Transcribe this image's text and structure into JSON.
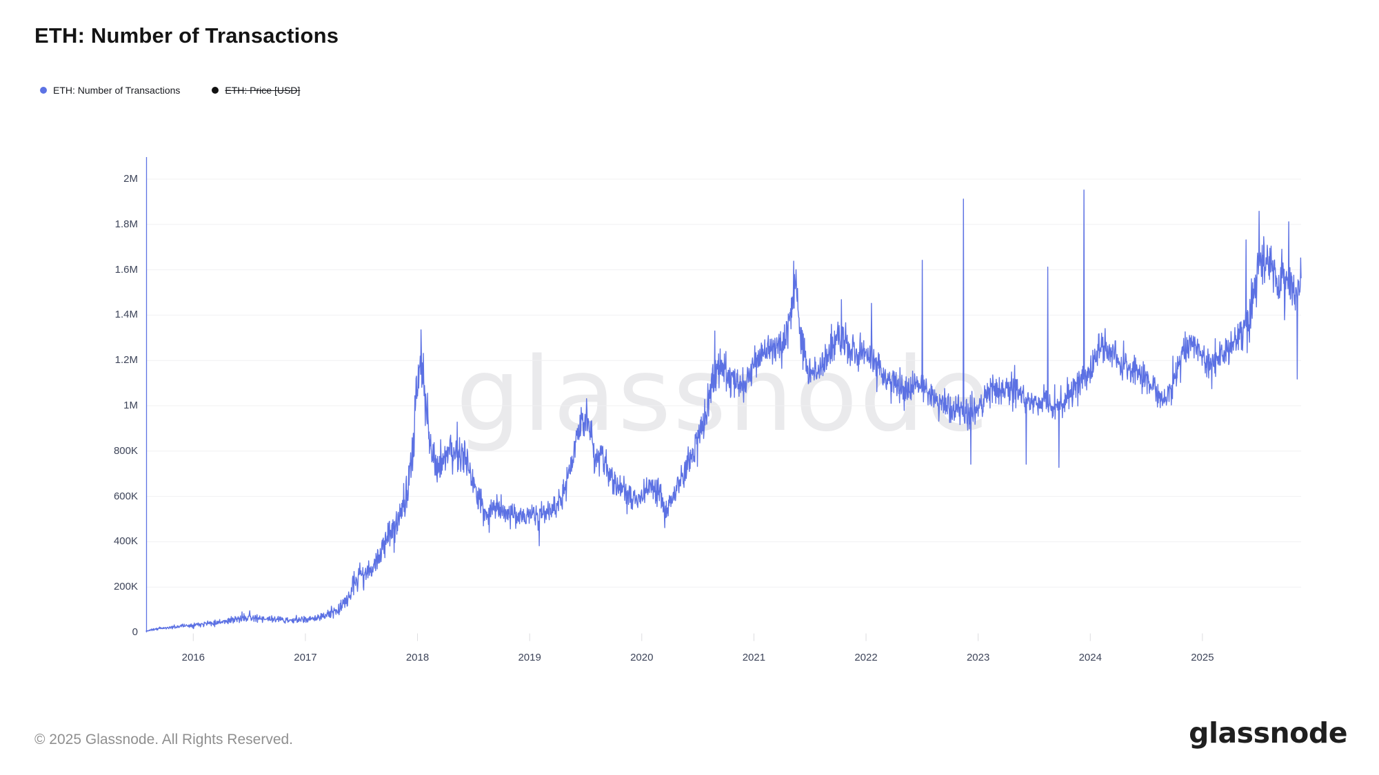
{
  "header": {
    "title": "ETH: Number of Transactions"
  },
  "legend": {
    "items": [
      {
        "label": "ETH: Number of Transactions",
        "color": "#5c72e4",
        "disabled": false
      },
      {
        "label": "ETH: Price [USD]",
        "color": "#111111",
        "disabled": true
      }
    ]
  },
  "chart": {
    "watermark": "glassnode",
    "colors": {
      "line": "#5c71e3",
      "axis": "#5c71e3",
      "grid": "#f0f0f2",
      "tick": "#dcdcdf",
      "tick_text": "#3c4358"
    }
  },
  "chart_data": {
    "type": "line",
    "title": "ETH: Number of Transactions",
    "series_name": "ETH: Number of Transactions",
    "hidden_series": "ETH: Price [USD]",
    "units": "transactions per day (values in thousands)",
    "x_domain": [
      2015.58,
      2025.88
    ],
    "ylim_thousands": [
      0,
      2000
    ],
    "grid": "horizontal-only",
    "legend_position": "top-left",
    "y_ticks": [
      {
        "v": 0,
        "label": "0"
      },
      {
        "v": 200,
        "label": "200K"
      },
      {
        "v": 400,
        "label": "400K"
      },
      {
        "v": 600,
        "label": "600K"
      },
      {
        "v": 800,
        "label": "800K"
      },
      {
        "v": 1000,
        "label": "1M"
      },
      {
        "v": 1200,
        "label": "1.2M"
      },
      {
        "v": 1400,
        "label": "1.4M"
      },
      {
        "v": 1600,
        "label": "1.6M"
      },
      {
        "v": 1800,
        "label": "1.8M"
      },
      {
        "v": 2000,
        "label": "2M"
      }
    ],
    "x_ticks": [
      2016,
      2017,
      2018,
      2019,
      2020,
      2021,
      2022,
      2023,
      2024,
      2025
    ],
    "anchors_monthly": [
      [
        2015.58,
        6,
        2
      ],
      [
        2015.63,
        12,
        4
      ],
      [
        2015.71,
        18,
        5
      ],
      [
        2015.79,
        22,
        6
      ],
      [
        2015.88,
        26,
        7
      ],
      [
        2015.96,
        30,
        7
      ],
      [
        2016.04,
        36,
        8
      ],
      [
        2016.13,
        41,
        9
      ],
      [
        2016.21,
        45,
        10
      ],
      [
        2016.29,
        50,
        12
      ],
      [
        2016.38,
        56,
        13
      ],
      [
        2016.46,
        64,
        15
      ],
      [
        2016.5,
        70,
        16
      ],
      [
        2016.54,
        62,
        13
      ],
      [
        2016.63,
        56,
        12
      ],
      [
        2016.71,
        60,
        13
      ],
      [
        2016.79,
        56,
        11
      ],
      [
        2016.88,
        52,
        10
      ],
      [
        2016.96,
        56,
        11
      ],
      [
        2017.04,
        60,
        12
      ],
      [
        2017.13,
        66,
        14
      ],
      [
        2017.21,
        78,
        18
      ],
      [
        2017.29,
        98,
        24
      ],
      [
        2017.38,
        150,
        34
      ],
      [
        2017.46,
        235,
        48
      ],
      [
        2017.5,
        262,
        44
      ],
      [
        2017.54,
        248,
        40
      ],
      [
        2017.63,
        320,
        48
      ],
      [
        2017.71,
        395,
        52
      ],
      [
        2017.79,
        465,
        58
      ],
      [
        2017.88,
        560,
        70
      ],
      [
        2017.96,
        760,
        95
      ],
      [
        2018.0,
        1150,
        110
      ],
      [
        2018.04,
        1180,
        130
      ],
      [
        2018.08,
        960,
        110
      ],
      [
        2018.13,
        790,
        70
      ],
      [
        2018.17,
        730,
        60
      ],
      [
        2018.25,
        765,
        65
      ],
      [
        2018.33,
        805,
        65
      ],
      [
        2018.42,
        775,
        75
      ],
      [
        2018.5,
        645,
        55
      ],
      [
        2018.58,
        555,
        50
      ],
      [
        2018.63,
        495,
        42
      ],
      [
        2018.67,
        560,
        48
      ],
      [
        2018.75,
        545,
        44
      ],
      [
        2018.83,
        530,
        40
      ],
      [
        2018.92,
        512,
        38
      ],
      [
        2019.0,
        522,
        38
      ],
      [
        2019.08,
        505,
        45
      ],
      [
        2019.17,
        540,
        40
      ],
      [
        2019.25,
        562,
        40
      ],
      [
        2019.33,
        645,
        58
      ],
      [
        2019.42,
        880,
        75
      ],
      [
        2019.5,
        935,
        60
      ],
      [
        2019.54,
        890,
        75
      ],
      [
        2019.58,
        760,
        60
      ],
      [
        2019.67,
        775,
        65
      ],
      [
        2019.75,
        655,
        50
      ],
      [
        2019.83,
        622,
        48
      ],
      [
        2019.92,
        582,
        40
      ],
      [
        2020.0,
        592,
        40
      ],
      [
        2020.08,
        642,
        48
      ],
      [
        2020.17,
        598,
        55
      ],
      [
        2020.21,
        540,
        55
      ],
      [
        2020.29,
        625,
        48
      ],
      [
        2020.38,
        702,
        50
      ],
      [
        2020.46,
        788,
        56
      ],
      [
        2020.54,
        920,
        65
      ],
      [
        2020.63,
        1105,
        70
      ],
      [
        2020.71,
        1165,
        75
      ],
      [
        2020.79,
        1115,
        65
      ],
      [
        2020.88,
        1095,
        58
      ],
      [
        2020.96,
        1128,
        58
      ],
      [
        2021.04,
        1195,
        60
      ],
      [
        2021.13,
        1255,
        60
      ],
      [
        2021.21,
        1238,
        58
      ],
      [
        2021.29,
        1305,
        66
      ],
      [
        2021.35,
        1490,
        85
      ],
      [
        2021.38,
        1545,
        55
      ],
      [
        2021.42,
        1285,
        75
      ],
      [
        2021.5,
        1128,
        58
      ],
      [
        2021.58,
        1178,
        56
      ],
      [
        2021.67,
        1228,
        58
      ],
      [
        2021.75,
        1298,
        75
      ],
      [
        2021.83,
        1252,
        65
      ],
      [
        2021.92,
        1232,
        58
      ],
      [
        2022.0,
        1252,
        65
      ],
      [
        2022.08,
        1188,
        56
      ],
      [
        2022.17,
        1122,
        50
      ],
      [
        2022.25,
        1098,
        50
      ],
      [
        2022.33,
        1062,
        56
      ],
      [
        2022.42,
        1098,
        56
      ],
      [
        2022.5,
        1078,
        56
      ],
      [
        2022.58,
        1042,
        50
      ],
      [
        2022.67,
        1012,
        50
      ],
      [
        2022.75,
        992,
        56
      ],
      [
        2022.83,
        1002,
        56
      ],
      [
        2022.92,
        962,
        56
      ],
      [
        2023.0,
        1002,
        56
      ],
      [
        2023.08,
        1048,
        56
      ],
      [
        2023.17,
        1062,
        56
      ],
      [
        2023.25,
        1078,
        56
      ],
      [
        2023.33,
        1088,
        56
      ],
      [
        2023.42,
        1022,
        62
      ],
      [
        2023.5,
        1012,
        56
      ],
      [
        2023.58,
        1042,
        56
      ],
      [
        2023.67,
        992,
        56
      ],
      [
        2023.75,
        1002,
        52
      ],
      [
        2023.83,
        1058,
        56
      ],
      [
        2023.92,
        1098,
        56
      ],
      [
        2024.0,
        1158,
        62
      ],
      [
        2024.08,
        1255,
        62
      ],
      [
        2024.17,
        1258,
        62
      ],
      [
        2024.25,
        1198,
        62
      ],
      [
        2024.33,
        1178,
        56
      ],
      [
        2024.42,
        1148,
        56
      ],
      [
        2024.5,
        1118,
        56
      ],
      [
        2024.58,
        1058,
        56
      ],
      [
        2024.67,
        1022,
        56
      ],
      [
        2024.75,
        1118,
        62
      ],
      [
        2024.83,
        1248,
        62
      ],
      [
        2024.92,
        1278,
        56
      ],
      [
        2025.0,
        1202,
        62
      ],
      [
        2025.08,
        1182,
        62
      ],
      [
        2025.17,
        1222,
        56
      ],
      [
        2025.25,
        1252,
        56
      ],
      [
        2025.33,
        1318,
        62
      ],
      [
        2025.42,
        1405,
        72
      ],
      [
        2025.5,
        1600,
        100
      ],
      [
        2025.58,
        1645,
        100
      ],
      [
        2025.67,
        1545,
        92
      ],
      [
        2025.75,
        1558,
        92
      ],
      [
        2025.83,
        1490,
        100
      ],
      [
        2025.88,
        1560,
        55
      ]
    ],
    "spikes_thousands": [
      [
        2018.03,
        1335
      ],
      [
        2019.085,
        382
      ],
      [
        2020.205,
        462
      ],
      [
        2020.65,
        1330
      ],
      [
        2021.355,
        1638
      ],
      [
        2021.78,
        1468
      ],
      [
        2022.05,
        1452
      ],
      [
        2022.5,
        1642
      ],
      [
        2022.87,
        1912
      ],
      [
        2022.935,
        742
      ],
      [
        2023.43,
        742
      ],
      [
        2023.62,
        1612
      ],
      [
        2023.72,
        728
      ],
      [
        2023.945,
        1952
      ],
      [
        2025.39,
        1732
      ],
      [
        2025.505,
        1858
      ],
      [
        2025.77,
        1812
      ],
      [
        2025.845,
        1118
      ]
    ]
  },
  "footer": {
    "copyright": "© 2025 Glassnode. All Rights Reserved.",
    "logo_text": "glassnode"
  }
}
